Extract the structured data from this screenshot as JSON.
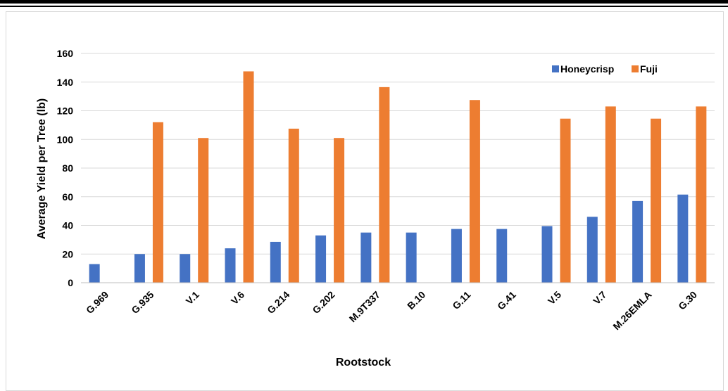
{
  "chart_data": {
    "type": "bar",
    "title": "",
    "xlabel": "Rootstock",
    "ylabel": "Average Yield per Tree (lb)",
    "ylim": [
      0,
      160
    ],
    "yticks": [
      0,
      20,
      40,
      60,
      80,
      100,
      120,
      140,
      160
    ],
    "grid": true,
    "legend_position": "top-right",
    "categories": [
      "G.969",
      "G.935",
      "V.1",
      "V.6",
      "G.214",
      "G.202",
      "M.9T337",
      "B.10",
      "G.11",
      "G.41",
      "V.5",
      "V.7",
      "M.26EMLA",
      "G.30"
    ],
    "series": [
      {
        "name": "Honeycrisp",
        "color": "#4472c4",
        "values": [
          13,
          20,
          20,
          24,
          28.5,
          33,
          35,
          35,
          37.5,
          37.5,
          39.5,
          46,
          57,
          61.5
        ]
      },
      {
        "name": "Fuji",
        "color": "#ed7d31",
        "values": [
          null,
          112,
          101,
          147.5,
          107.5,
          101,
          136.5,
          null,
          127.5,
          null,
          114.5,
          123,
          114.5,
          123
        ]
      }
    ]
  }
}
